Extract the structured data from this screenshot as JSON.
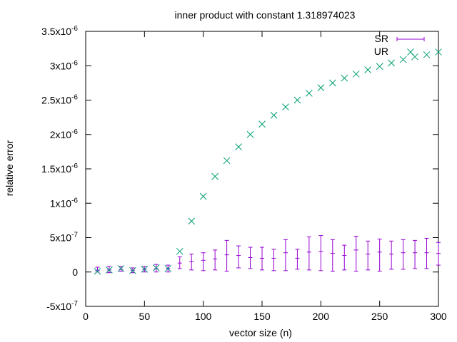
{
  "chart_data": {
    "type": "scatter",
    "title": "inner product with constant 1.318974023",
    "xlabel": "vector size (n)",
    "ylabel": "relative error",
    "xlim": [
      0,
      300
    ],
    "ylim": [
      -5e-07,
      3.5e-06
    ],
    "x_ticks": [
      0,
      50,
      100,
      150,
      200,
      250,
      300
    ],
    "x_tick_labels": [
      "0",
      "50",
      "100",
      "150",
      "200",
      "250",
      "300"
    ],
    "y_ticks": [
      -5e-07,
      0,
      5e-07,
      1e-06,
      1.5e-06,
      2e-06,
      2.5e-06,
      3e-06,
      3.5e-06
    ],
    "y_tick_labels": [
      {
        "mant": "-5x10",
        "exp": "-7"
      },
      {
        "mant": "0",
        "exp": ""
      },
      {
        "mant": "5x10",
        "exp": "-7"
      },
      {
        "mant": "1x10",
        "exp": "-6"
      },
      {
        "mant": "1.5x10",
        "exp": "-6"
      },
      {
        "mant": "2x10",
        "exp": "-6"
      },
      {
        "mant": "2.5x10",
        "exp": "-6"
      },
      {
        "mant": "3x10",
        "exp": "-6"
      },
      {
        "mant": "3.5x10",
        "exp": "-6"
      }
    ],
    "grid": false,
    "legend_position": "top-right",
    "series": [
      {
        "name": "SR",
        "style": "errorbars",
        "color": "#9400d3",
        "points": [
          {
            "x": 10,
            "y": 2.5e-08,
            "ylow": 0,
            "yhigh": 7e-08
          },
          {
            "x": 20,
            "y": 3e-08,
            "ylow": -1e-08,
            "yhigh": 8e-08
          },
          {
            "x": 30,
            "y": 4e-08,
            "ylow": 1e-08,
            "yhigh": 8e-08
          },
          {
            "x": 40,
            "y": 2.5e-08,
            "ylow": -1e-08,
            "yhigh": 6e-08
          },
          {
            "x": 50,
            "y": 4e-08,
            "ylow": 0,
            "yhigh": 8e-08
          },
          {
            "x": 60,
            "y": 5e-08,
            "ylow": 0,
            "yhigh": 1.1e-07
          },
          {
            "x": 70,
            "y": 5e-08,
            "ylow": 0,
            "yhigh": 1e-07
          },
          {
            "x": 80,
            "y": 1.3e-07,
            "ylow": 5e-08,
            "yhigh": 2.2e-07
          },
          {
            "x": 90,
            "y": 1.5e-07,
            "ylow": 3e-08,
            "yhigh": 2.6e-07
          },
          {
            "x": 100,
            "y": 1.7e-07,
            "ylow": 2e-08,
            "yhigh": 2.8e-07
          },
          {
            "x": 110,
            "y": 1.9e-07,
            "ylow": 3e-08,
            "yhigh": 3.2e-07
          },
          {
            "x": 120,
            "y": 2.5e-07,
            "ylow": 1e-08,
            "yhigh": 4.6e-07
          },
          {
            "x": 130,
            "y": 2.4e-07,
            "ylow": 6e-08,
            "yhigh": 3.8e-07
          },
          {
            "x": 140,
            "y": 2.1e-07,
            "ylow": 5e-08,
            "yhigh": 3.6e-07
          },
          {
            "x": 150,
            "y": 2e-07,
            "ylow": 3e-08,
            "yhigh": 3.6e-07
          },
          {
            "x": 160,
            "y": 2e-07,
            "ylow": 2e-08,
            "yhigh": 3.3e-07
          },
          {
            "x": 170,
            "y": 2.8e-07,
            "ylow": 2e-08,
            "yhigh": 4.7e-07
          },
          {
            "x": 180,
            "y": 2e-07,
            "ylow": 4e-08,
            "yhigh": 3.3e-07
          },
          {
            "x": 190,
            "y": 2.9e-07,
            "ylow": 3e-08,
            "yhigh": 5.1e-07
          },
          {
            "x": 200,
            "y": 3e-07,
            "ylow": 2e-08,
            "yhigh": 5.3e-07
          },
          {
            "x": 210,
            "y": 2.7e-07,
            "ylow": 1e-08,
            "yhigh": 4.7e-07
          },
          {
            "x": 220,
            "y": 2.4e-07,
            "ylow": 3e-08,
            "yhigh": 3.9e-07
          },
          {
            "x": 230,
            "y": 3.2e-07,
            "ylow": 1e-08,
            "yhigh": 5.2e-07
          },
          {
            "x": 240,
            "y": 2.6e-07,
            "ylow": 3e-08,
            "yhigh": 4.5e-07
          },
          {
            "x": 250,
            "y": 2.9e-07,
            "ylow": 1e-08,
            "yhigh": 4.8e-07
          },
          {
            "x": 260,
            "y": 2.6e-07,
            "ylow": 4e-08,
            "yhigh": 4.5e-07
          },
          {
            "x": 270,
            "y": 2.8e-07,
            "ylow": 4e-08,
            "yhigh": 4.7e-07
          },
          {
            "x": 280,
            "y": 2.8e-07,
            "ylow": 5e-08,
            "yhigh": 4.6e-07
          },
          {
            "x": 290,
            "y": 2.8e-07,
            "ylow": 5e-08,
            "yhigh": 4.9e-07
          },
          {
            "x": 300,
            "y": 2.7e-07,
            "ylow": 1e-07,
            "yhigh": 4.3e-07
          }
        ]
      },
      {
        "name": "UR",
        "style": "points",
        "color": "#009e73",
        "points": [
          {
            "x": 10,
            "y": 1e-08
          },
          {
            "x": 20,
            "y": 3e-08
          },
          {
            "x": 30,
            "y": 5e-08
          },
          {
            "x": 40,
            "y": 2e-08
          },
          {
            "x": 50,
            "y": 4e-08
          },
          {
            "x": 60,
            "y": 6e-08
          },
          {
            "x": 70,
            "y": 5e-08
          },
          {
            "x": 80,
            "y": 3e-07
          },
          {
            "x": 90,
            "y": 7.4e-07
          },
          {
            "x": 100,
            "y": 1.1e-06
          },
          {
            "x": 110,
            "y": 1.39e-06
          },
          {
            "x": 120,
            "y": 1.62e-06
          },
          {
            "x": 130,
            "y": 1.82e-06
          },
          {
            "x": 140,
            "y": 2e-06
          },
          {
            "x": 150,
            "y": 2.15e-06
          },
          {
            "x": 160,
            "y": 2.28e-06
          },
          {
            "x": 170,
            "y": 2.4e-06
          },
          {
            "x": 180,
            "y": 2.5e-06
          },
          {
            "x": 190,
            "y": 2.6e-06
          },
          {
            "x": 200,
            "y": 2.68e-06
          },
          {
            "x": 210,
            "y": 2.75e-06
          },
          {
            "x": 220,
            "y": 2.82e-06
          },
          {
            "x": 230,
            "y": 2.88e-06
          },
          {
            "x": 240,
            "y": 2.94e-06
          },
          {
            "x": 250,
            "y": 2.99e-06
          },
          {
            "x": 260,
            "y": 3.04e-06
          },
          {
            "x": 270,
            "y": 3.09e-06
          },
          {
            "x": 280,
            "y": 3.13e-06
          },
          {
            "x": 290,
            "y": 3.16e-06
          },
          {
            "x": 300,
            "y": 3.2e-06
          }
        ]
      }
    ]
  }
}
